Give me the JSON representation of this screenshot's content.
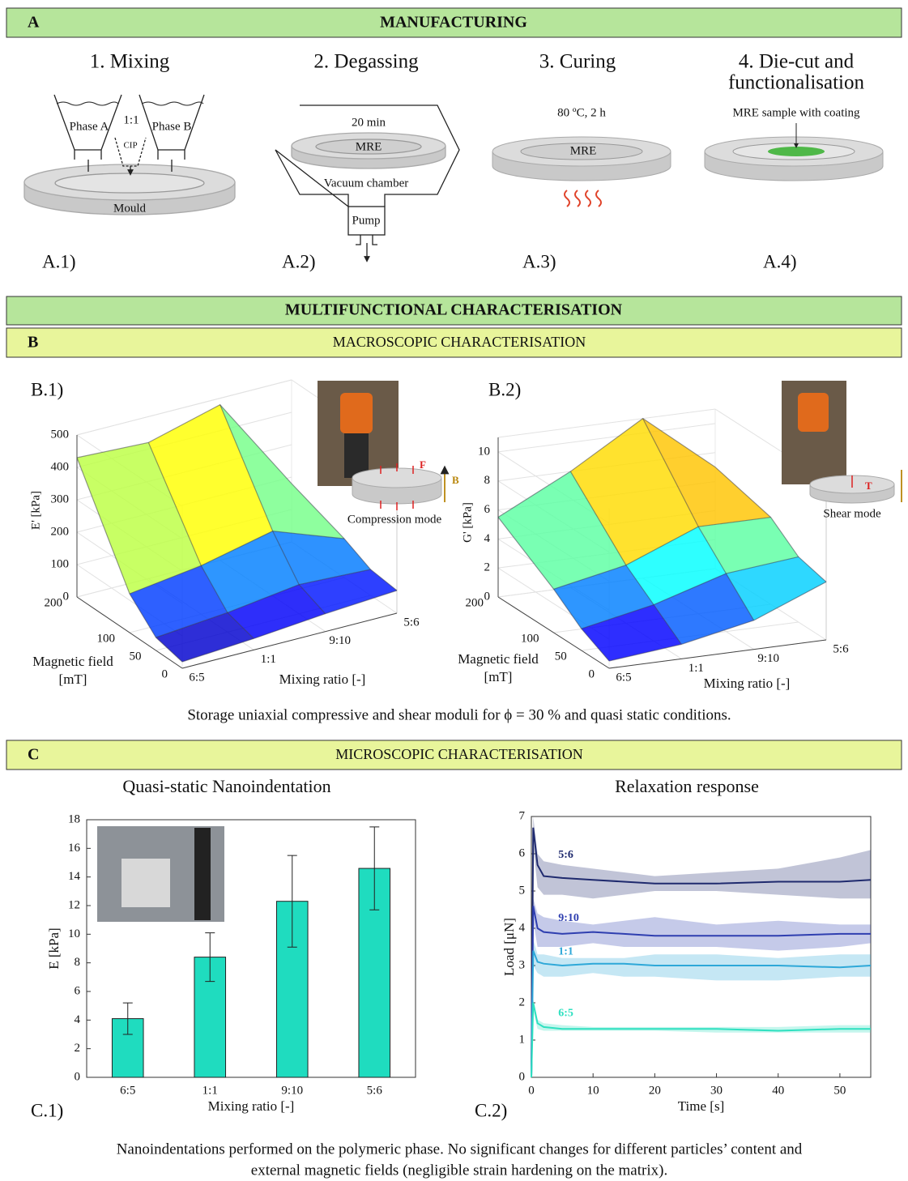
{
  "figure": {
    "manufacturing": {
      "label": "A",
      "title": "MANUFACTURING",
      "mixing": {
        "title": "1. Mixing",
        "phase_a": "Phase A",
        "ratio": "1:1",
        "cip": "CIP",
        "phase_b": "Phase B",
        "mould": "Mould",
        "panel": "A.1)"
      },
      "degassing": {
        "title": "2. Degassing",
        "time": "20 min",
        "mre": "MRE",
        "chamber": "Vacuum chamber",
        "pump": "Pump",
        "panel": "A.2)"
      },
      "curing": {
        "title": "3. Curing",
        "conditions": "80 ºC, 2 h",
        "mre": "MRE",
        "panel": "A.3)"
      },
      "diecut": {
        "title": [
          "4. Die-cut and",
          "functionalisation"
        ],
        "sample": "MRE sample with coating",
        "panel": "A.4)"
      }
    },
    "characterisation": {
      "title": "MULTIFUNCTIONAL CHARACTERISATION"
    },
    "macroscopic": {
      "label": "B",
      "title": "MACROSCOPIC CHARACTERISATION",
      "panels": [
        "B.1)",
        "B.2)"
      ],
      "compression": {
        "mode": "Compression mode",
        "force": "F",
        "field": "B"
      },
      "shear": {
        "mode": "Shear mode",
        "torque": "T"
      },
      "caption": "Storage uniaxial compressive and shear moduli for ϕ = 30 % and quasi static conditions."
    },
    "microscopic": {
      "label": "C",
      "title": "MICROSCOPIC CHARACTERISATION",
      "panels": [
        "C.1)",
        "C.2)"
      ],
      "caption": [
        "Nanoindentations performed on the polymeric phase. No significant changes for different particles’ content and",
        "external magnetic fields (negligible strain hardening on the matrix)."
      ]
    }
  },
  "chart_data": [
    {
      "type": "surface3d",
      "zlabel": "E' [kPa]",
      "ylabel": [
        "Magnetic field",
        "[mT]"
      ],
      "xlabel": "Mixing ratio [-]",
      "categories": [
        "6:5",
        "1:1",
        "9:10",
        "5:6"
      ],
      "y": [
        0,
        50,
        100,
        200
      ],
      "ylim": [
        0,
        200
      ],
      "yticks": [
        0,
        50,
        100,
        200
      ],
      "zlim": [
        0,
        500
      ],
      "zticks": [
        0,
        100,
        200,
        300,
        400,
        500
      ],
      "colormap": "jet",
      "z": [
        [
          20,
          35,
          55,
          70
        ],
        [
          40,
          60,
          90,
          80
        ],
        [
          120,
          150,
          200,
          120
        ],
        [
          430,
          420,
          480,
          180
        ]
      ]
    },
    {
      "type": "surface3d",
      "zlabel": "G' [kPa]",
      "ylabel": [
        "Magnetic field",
        "[mT]"
      ],
      "xlabel": "Mixing ratio [-]",
      "categories": [
        "6:5",
        "1:1",
        "9:10",
        "5:6"
      ],
      "y": [
        0,
        50,
        100,
        200
      ],
      "ylim": [
        0,
        200
      ],
      "yticks": [
        0,
        50,
        100,
        200
      ],
      "zlim": [
        0,
        11
      ],
      "zticks": [
        0,
        2,
        4,
        6,
        8,
        10
      ],
      "colormap": "jet",
      "z": [
        [
          0.5,
          1,
          2,
          4
        ],
        [
          1.5,
          2.5,
          4,
          4.5
        ],
        [
          3,
          4,
          6,
          6
        ],
        [
          5.5,
          8,
          11,
          7
        ]
      ]
    },
    {
      "type": "bar",
      "title": "Quasi-static Nanoindentation",
      "xlabel": "Mixing ratio [-]",
      "ylabel": "E [kPa]",
      "categories": [
        "6:5",
        "1:1",
        "9:10",
        "5:6"
      ],
      "values": [
        4.1,
        8.4,
        12.3,
        14.6
      ],
      "errors": [
        1.1,
        1.7,
        3.2,
        2.9
      ],
      "color": "#1fdcbf",
      "ylim": [
        0,
        18
      ],
      "yticks": [
        0,
        2,
        4,
        6,
        8,
        10,
        12,
        14,
        16,
        18
      ]
    },
    {
      "type": "line",
      "title": "Relaxation response",
      "xlabel": "Time [s]",
      "ylabel": "Load [μN]",
      "x": [
        0,
        0.3,
        1,
        2,
        5,
        10,
        15,
        20,
        30,
        40,
        50,
        55
      ],
      "xlim": [
        0,
        55
      ],
      "xticks": [
        0,
        10,
        20,
        30,
        40,
        50
      ],
      "ylim": [
        0,
        7
      ],
      "yticks": [
        0,
        1,
        2,
        3,
        4,
        5,
        6,
        7
      ],
      "series": [
        {
          "name": "5:6",
          "color": "#1f2a6e",
          "values": [
            0,
            6.7,
            5.7,
            5.4,
            5.35,
            5.3,
            5.25,
            5.2,
            5.2,
            5.25,
            5.25,
            5.3
          ],
          "lower": [
            0,
            6.2,
            5.1,
            4.9,
            4.9,
            4.8,
            4.9,
            5.0,
            5.0,
            4.9,
            4.8,
            4.8
          ],
          "upper": [
            0,
            7,
            6,
            5.8,
            5.7,
            5.6,
            5.5,
            5.4,
            5.5,
            5.6,
            5.9,
            6.1
          ]
        },
        {
          "name": "9:10",
          "color": "#2f3fb0",
          "values": [
            0,
            4.6,
            4.0,
            3.9,
            3.85,
            3.9,
            3.85,
            3.8,
            3.8,
            3.8,
            3.85,
            3.85
          ],
          "lower": [
            0,
            4.2,
            3.5,
            3.5,
            3.5,
            3.6,
            3.5,
            3.5,
            3.5,
            3.4,
            3.5,
            3.6
          ],
          "upper": [
            0,
            4.8,
            4.4,
            4.3,
            4.2,
            4.1,
            4.2,
            4.3,
            4.1,
            4.2,
            4.1,
            4.1
          ]
        },
        {
          "name": "1:1",
          "color": "#2ea8d8",
          "values": [
            0,
            3.4,
            3.1,
            3.05,
            3.0,
            3.05,
            3.05,
            3.0,
            3.0,
            3.0,
            2.95,
            3.0
          ],
          "lower": [
            0,
            3.0,
            2.8,
            2.7,
            2.7,
            2.8,
            2.7,
            2.7,
            2.6,
            2.6,
            2.7,
            2.7
          ],
          "upper": [
            0,
            3.7,
            3.3,
            3.3,
            3.2,
            3.2,
            3.2,
            3.3,
            3.3,
            3.2,
            3.3,
            3.3
          ]
        },
        {
          "name": "6:5",
          "color": "#2fe0c0",
          "values": [
            0,
            2.0,
            1.45,
            1.35,
            1.3,
            1.3,
            1.3,
            1.3,
            1.3,
            1.25,
            1.3,
            1.3
          ],
          "lower": [
            0,
            1.8,
            1.3,
            1.25,
            1.25,
            1.25,
            1.25,
            1.25,
            1.2,
            1.2,
            1.2,
            1.2
          ],
          "upper": [
            0,
            2.1,
            1.55,
            1.45,
            1.4,
            1.35,
            1.35,
            1.35,
            1.35,
            1.35,
            1.4,
            1.4
          ]
        }
      ]
    }
  ]
}
